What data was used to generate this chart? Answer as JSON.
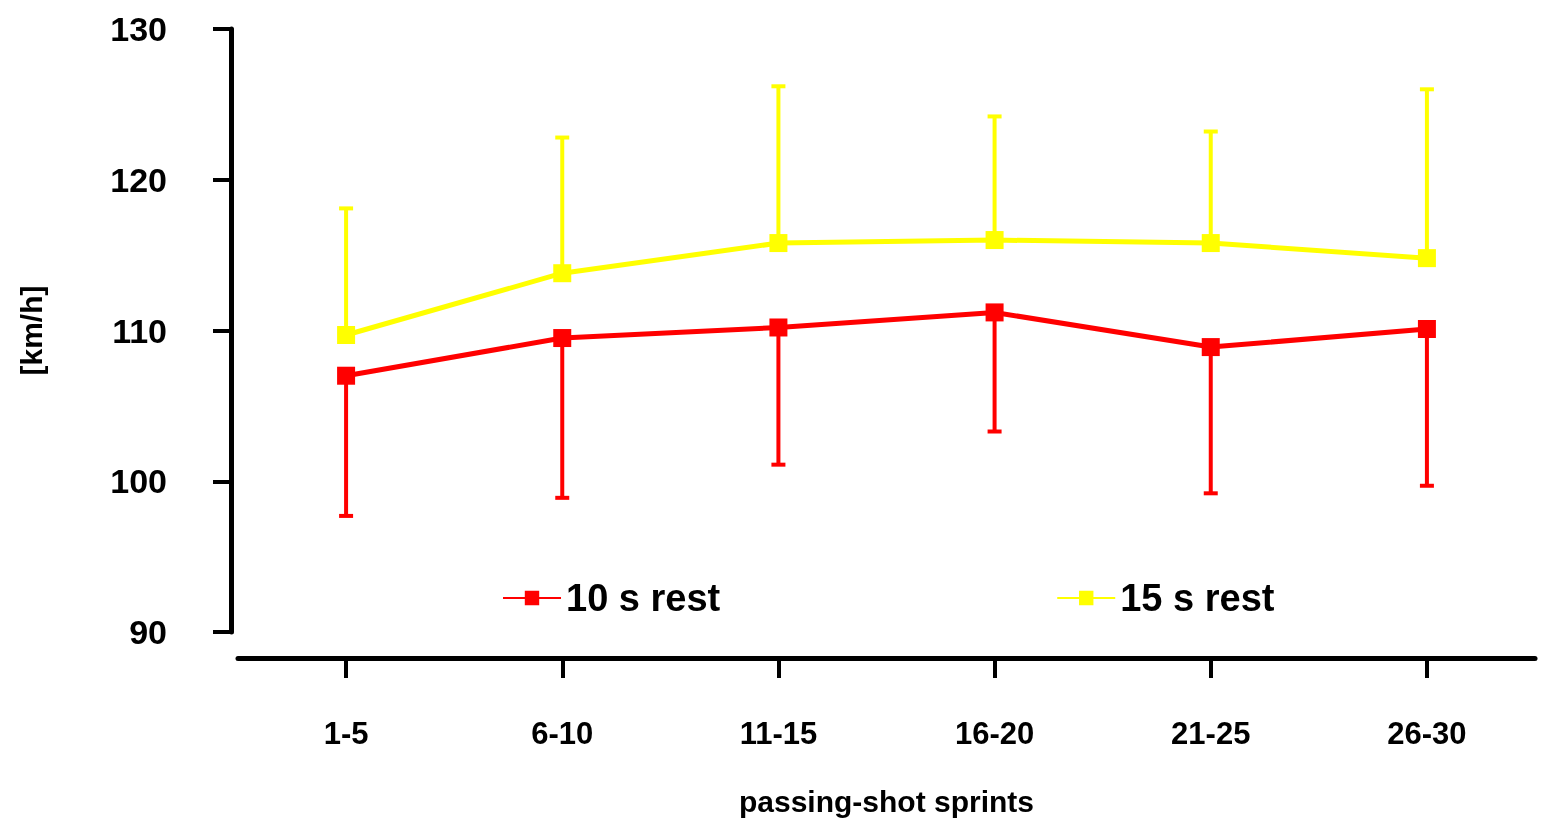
{
  "chart_data": {
    "type": "line",
    "xlabel": "passing-shot sprints",
    "ylabel": "[km/h]",
    "categories": [
      "1-5",
      "6-10",
      "11-15",
      "16-20",
      "21-25",
      "26-30"
    ],
    "series": [
      {
        "name": "10 s rest",
        "color": "#ff0000",
        "values": [
          107,
          109.5,
          110.2,
          111.2,
          108.9,
          110.1
        ],
        "errors": [
          [
            97.7,
            107
          ],
          [
            98.9,
            109.5
          ],
          [
            101.1,
            110.2
          ],
          [
            103.3,
            111.2
          ],
          [
            99.2,
            108.9
          ],
          [
            99.7,
            110.1
          ]
        ]
      },
      {
        "name": "15 s rest",
        "color": "#ffff00",
        "values": [
          109.7,
          113.8,
          115.8,
          116,
          115.8,
          114.8
        ],
        "errors": [
          [
            109.7,
            118.1
          ],
          [
            113.8,
            122.8
          ],
          [
            115.8,
            126.2
          ],
          [
            116,
            124.2
          ],
          [
            115.8,
            123.2
          ],
          [
            114.8,
            126
          ]
        ]
      }
    ],
    "ylim": [
      90,
      130
    ],
    "yticks": [
      90,
      100,
      110,
      120,
      130
    ],
    "grid": false,
    "legend": "bottom",
    "marker": "square",
    "line_style": "solid"
  }
}
